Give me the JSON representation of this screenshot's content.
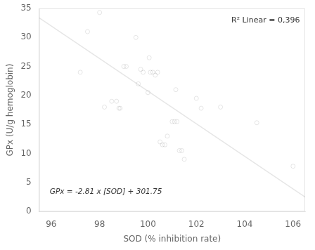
{
  "chart_data": {
    "type": "scatter",
    "xlabel": "SOD (% inhibition rate)",
    "ylabel": "GPx (U/g hemoglobin)",
    "series": [
      {
        "type": "scatter",
        "marker": "circle",
        "x": [
          97.2,
          97.5,
          98.0,
          98.2,
          98.5,
          98.7,
          98.8,
          98.85,
          99.0,
          99.1,
          99.5,
          99.6,
          99.7,
          99.8,
          100.0,
          100.05,
          100.1,
          100.2,
          100.3,
          100.4,
          100.5,
          100.6,
          100.7,
          100.8,
          101.0,
          101.1,
          101.15,
          101.2,
          101.3,
          101.4,
          101.5,
          102.0,
          102.2,
          103.0,
          104.5,
          106.0
        ],
        "values": [
          24.0,
          31.0,
          34.3,
          18.0,
          19.0,
          19.0,
          17.8,
          17.8,
          25.0,
          25.0,
          30.0,
          22.0,
          24.5,
          24.0,
          20.5,
          26.5,
          24.0,
          24.0,
          23.5,
          24.0,
          12.0,
          11.5,
          11.5,
          13.0,
          15.5,
          15.5,
          21.0,
          15.5,
          10.5,
          10.5,
          9.0,
          19.5,
          17.8,
          18.0,
          15.3,
          7.8
        ]
      },
      {
        "type": "line",
        "line_style": "solid",
        "x": [
          95.5,
          106.5
        ],
        "values": [
          33.395,
          2.485
        ]
      }
    ],
    "annotations": [
      "R² Linear = 0,396",
      "GPx = -2.81 x [SOD] + 301.75"
    ],
    "xlim": [
      95.5,
      106.5
    ],
    "ylim": [
      0,
      35
    ],
    "xticks": [
      96,
      98,
      100,
      102,
      104,
      106
    ],
    "yticks": [
      0,
      5,
      10,
      15,
      20,
      25,
      30,
      35
    ],
    "grid": false
  }
}
